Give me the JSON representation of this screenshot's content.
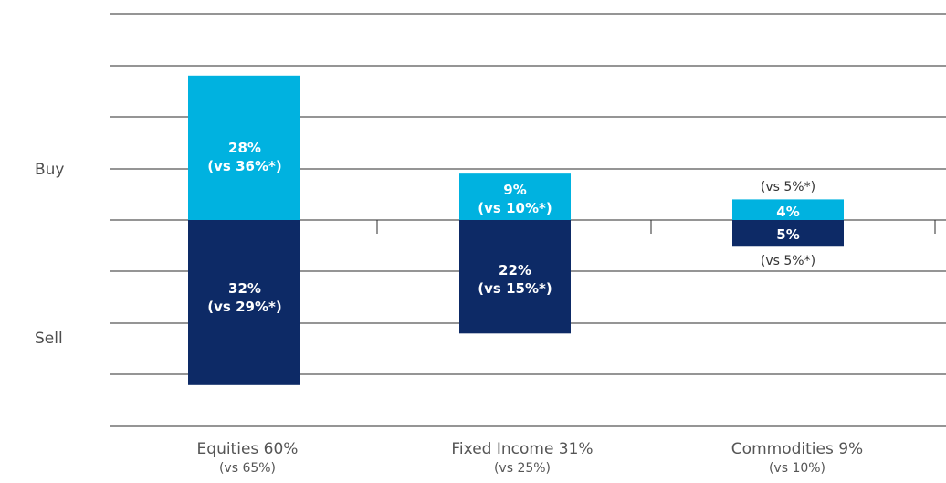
{
  "chart_data": {
    "type": "bar",
    "layout": "diverging-stacked",
    "y_labels": {
      "top": "Buy",
      "bottom": "Sell"
    },
    "ylim": [
      -40,
      40
    ],
    "grid": true,
    "categories": [
      {
        "name": "Equities 60%",
        "sub": "(vs 65%)"
      },
      {
        "name": "Fixed Income 31%",
        "sub": "(vs 25%)"
      },
      {
        "name": "Commodities 9%",
        "sub": "(vs 10%)"
      }
    ],
    "series": [
      {
        "name": "Buy",
        "color": "#00b2e0",
        "values": [
          28,
          9,
          4
        ],
        "labels": [
          "28%",
          "9%",
          "4%"
        ],
        "comparisons": [
          "(vs 36%*)",
          "(vs 10%*)",
          "(vs 5%*)"
        ]
      },
      {
        "name": "Sell",
        "color": "#0d2a66",
        "values": [
          32,
          22,
          5
        ],
        "labels": [
          "32%",
          "22%",
          "5%"
        ],
        "comparisons": [
          "(vs 29%*)",
          "(vs 15%*)",
          "(vs 5%*)"
        ]
      }
    ]
  }
}
